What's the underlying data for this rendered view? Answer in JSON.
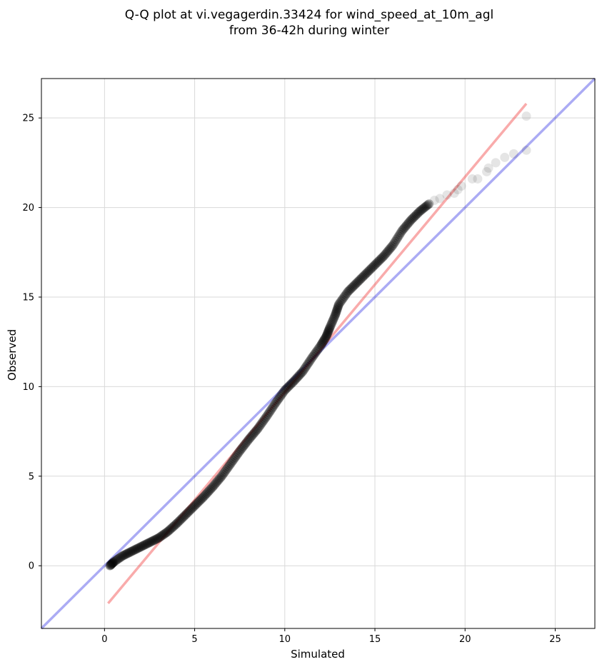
{
  "chart_data": {
    "type": "scatter",
    "title_lines": [
      "Q-Q plot at vi.vegagerdin.33424 for wind_speed_at_10m_agl",
      "from 36-42h during winter"
    ],
    "xlabel": "Simulated",
    "ylabel": "Observed",
    "xlim": [
      -3.5,
      27.2
    ],
    "ylim": [
      -3.5,
      27.2
    ],
    "xticks": [
      0,
      5,
      10,
      15,
      20,
      25
    ],
    "yticks": [
      0,
      5,
      10,
      15,
      20,
      25
    ],
    "grid": true,
    "colors": {
      "points": "#000000",
      "identity_line": "#0000dd",
      "fit_line": "#ee2222",
      "grid": "#d9d9d9"
    },
    "identity_line": {
      "x": [
        -3.5,
        27.2
      ],
      "y": [
        -3.5,
        27.2
      ]
    },
    "fit_line": {
      "x": [
        0.2,
        23.4
      ],
      "y": [
        -2.1,
        25.8
      ]
    },
    "quantile_curve": {
      "x": [
        0.3,
        0.5,
        1.0,
        1.5,
        2.0,
        2.5,
        3.0,
        3.5,
        4.0,
        4.5,
        5.0,
        5.5,
        6.0,
        6.5,
        7.0,
        7.5,
        8.0,
        8.5,
        9.0,
        9.5,
        10.0,
        10.5,
        11.0,
        11.5,
        12.0,
        12.3,
        12.5,
        12.8,
        13.0,
        13.5,
        14.0,
        14.5,
        15.0,
        15.5,
        16.0,
        16.5,
        17.0,
        17.5,
        18.0
      ],
      "y": [
        0.0,
        0.2,
        0.55,
        0.8,
        1.05,
        1.3,
        1.55,
        1.9,
        2.35,
        2.85,
        3.35,
        3.85,
        4.4,
        5.0,
        5.7,
        6.4,
        7.05,
        7.65,
        8.35,
        9.1,
        9.8,
        10.3,
        10.85,
        11.6,
        12.3,
        12.8,
        13.3,
        14.0,
        14.6,
        15.3,
        15.8,
        16.3,
        16.8,
        17.3,
        17.9,
        18.7,
        19.3,
        19.8,
        20.2
      ]
    },
    "tail_points": {
      "x": [
        18.3,
        18.6,
        19.0,
        19.4,
        19.6,
        19.8,
        20.4,
        20.7,
        21.2,
        21.3,
        21.7,
        22.2,
        22.7,
        23.4,
        23.4
      ],
      "y": [
        20.4,
        20.5,
        20.7,
        20.8,
        21.0,
        21.2,
        21.6,
        21.6,
        22.0,
        22.2,
        22.5,
        22.8,
        23.0,
        23.2,
        25.1
      ]
    }
  }
}
